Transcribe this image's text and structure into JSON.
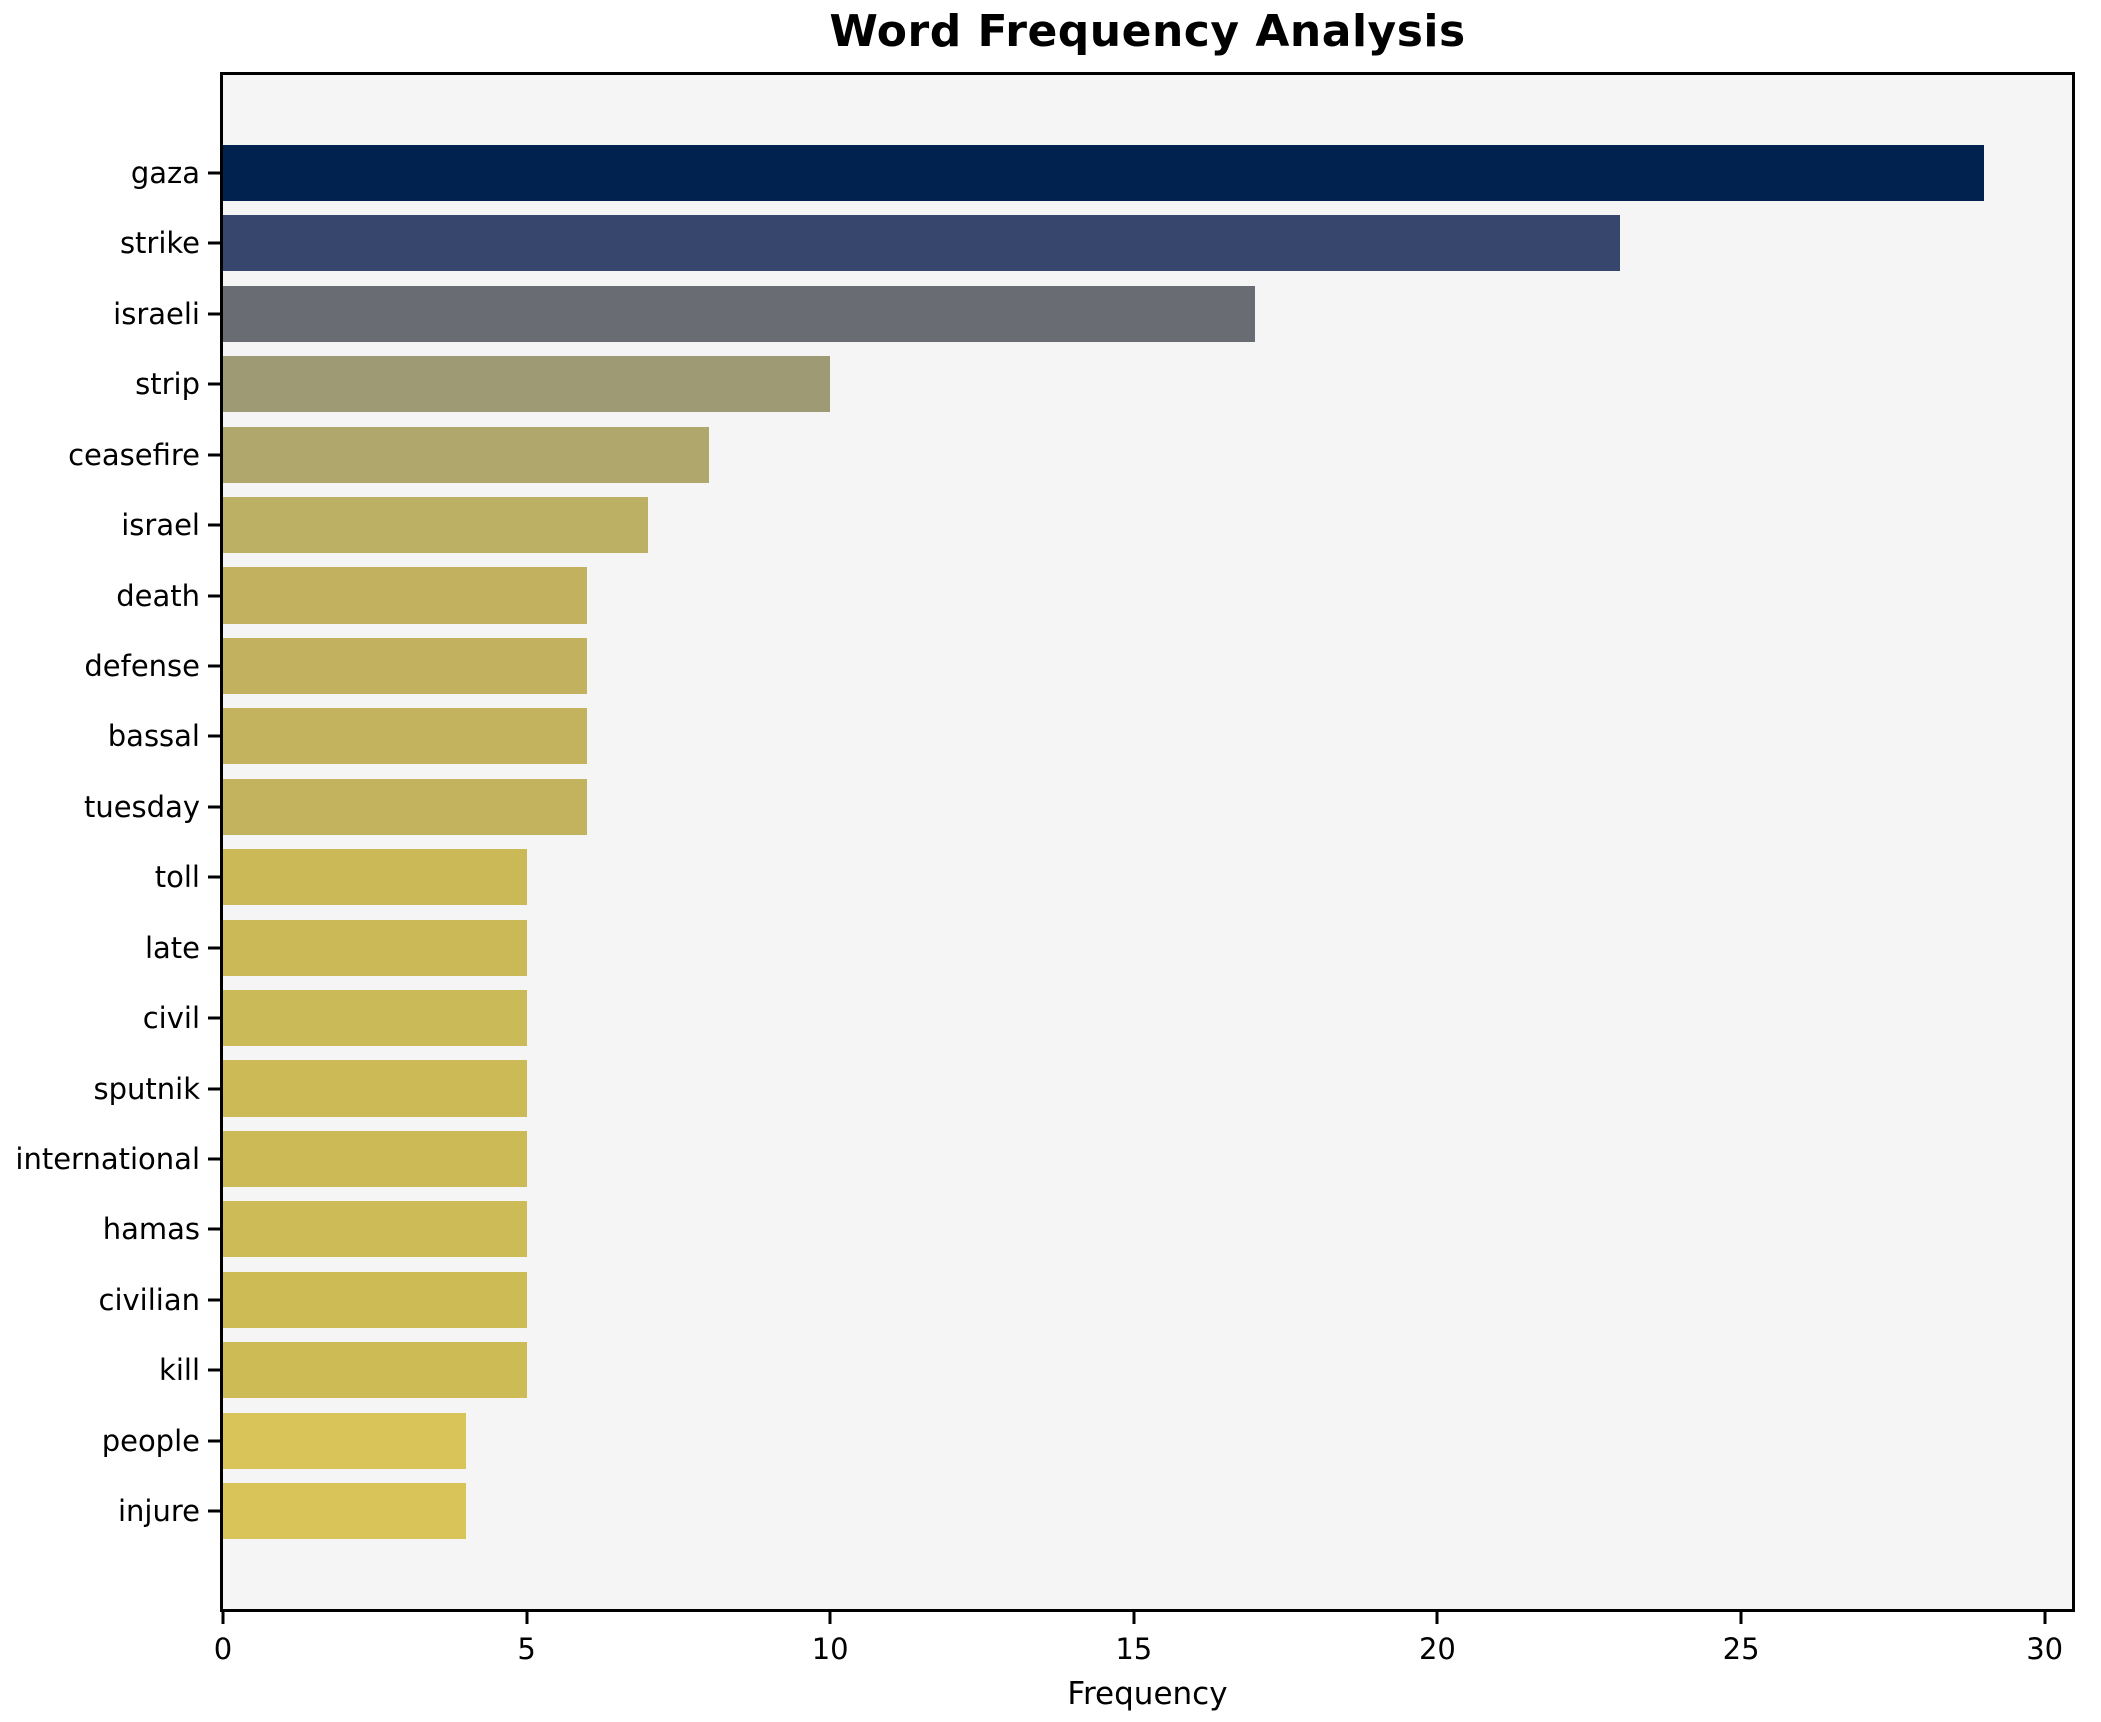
{
  "chart_data": {
    "type": "bar",
    "orientation": "horizontal",
    "title": "Word Frequency Analysis",
    "xlabel": "Frequency",
    "ylabel": "",
    "categories": [
      "gaza",
      "strike",
      "israeli",
      "strip",
      "ceasefire",
      "israel",
      "death",
      "defense",
      "bassal",
      "tuesday",
      "toll",
      "late",
      "civil",
      "sputnik",
      "international",
      "hamas",
      "civilian",
      "kill",
      "people",
      "injure"
    ],
    "values": [
      29,
      23,
      17,
      10,
      8,
      7,
      6,
      6,
      6,
      6,
      5,
      5,
      5,
      5,
      5,
      5,
      5,
      5,
      4,
      4
    ],
    "bar_colors": [
      "#01214e",
      "#36466d",
      "#696c72",
      "#9e9a73",
      "#b0a76c",
      "#bcb065",
      "#c2b25f",
      "#c2b25f",
      "#c3b35e",
      "#c3b35e",
      "#cbb958",
      "#cbb958",
      "#cbba58",
      "#ccba57",
      "#ccba57",
      "#ccbb57",
      "#cdbb56",
      "#cdbc56",
      "#d9c45a",
      "#d9c45a"
    ],
    "xticks": [
      0,
      5,
      10,
      15,
      20,
      25,
      30
    ],
    "xlim": [
      0,
      30.45
    ],
    "grid": false,
    "legend": false,
    "plot_background": "#f5f5f6",
    "figure_background": "#ffffff",
    "frame_color": "#000000"
  }
}
